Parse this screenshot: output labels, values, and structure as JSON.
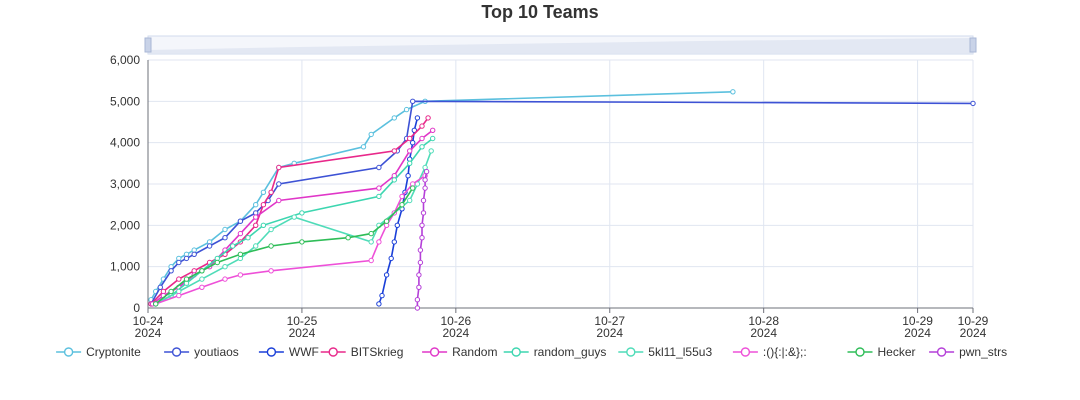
{
  "chart_data": {
    "type": "line",
    "title": "Top 10 Teams",
    "xlabel": "",
    "ylabel": "",
    "y_ticks": [
      "0",
      "1,000",
      "2,000",
      "3,000",
      "4,000",
      "5,000",
      "6,000"
    ],
    "ylim": [
      0,
      6000
    ],
    "x_ticks": [
      {
        "date": "10-24",
        "year": "2024",
        "x": 0
      },
      {
        "date": "10-25",
        "year": "2024",
        "x": 1
      },
      {
        "date": "10-26",
        "year": "2024",
        "x": 2
      },
      {
        "date": "10-27",
        "year": "2024",
        "x": 3
      },
      {
        "date": "10-28",
        "year": "2024",
        "x": 4
      },
      {
        "date": "10-29",
        "year": "2024",
        "x": 5
      },
      {
        "date": "10-29",
        "year": "2024",
        "x": 5.36
      }
    ],
    "xlim": [
      0,
      5.36
    ],
    "grid": true,
    "legend_position": "bottom",
    "series": [
      {
        "name": "Cryptonite",
        "color": "#5bc0de",
        "points": [
          [
            0.02,
            200
          ],
          [
            0.05,
            400
          ],
          [
            0.1,
            700
          ],
          [
            0.15,
            1000
          ],
          [
            0.2,
            1200
          ],
          [
            0.25,
            1300
          ],
          [
            0.3,
            1400
          ],
          [
            0.4,
            1600
          ],
          [
            0.5,
            1900
          ],
          [
            0.6,
            2100
          ],
          [
            0.7,
            2500
          ],
          [
            0.75,
            2800
          ],
          [
            0.85,
            3400
          ],
          [
            0.95,
            3500
          ],
          [
            1.4,
            3900
          ],
          [
            1.45,
            4200
          ],
          [
            1.6,
            4600
          ],
          [
            1.68,
            4800
          ],
          [
            1.8,
            5000
          ],
          [
            3.8,
            5230
          ]
        ]
      },
      {
        "name": "youtiaos",
        "color": "#3d52d5",
        "points": [
          [
            0.02,
            100
          ],
          [
            0.08,
            500
          ],
          [
            0.15,
            900
          ],
          [
            0.2,
            1100
          ],
          [
            0.25,
            1200
          ],
          [
            0.3,
            1300
          ],
          [
            0.4,
            1500
          ],
          [
            0.5,
            1700
          ],
          [
            0.6,
            2100
          ],
          [
            0.7,
            2300
          ],
          [
            0.78,
            2600
          ],
          [
            0.85,
            3000
          ],
          [
            1.5,
            3400
          ],
          [
            1.62,
            3800
          ],
          [
            1.68,
            4100
          ],
          [
            1.72,
            5000
          ],
          [
            5.36,
            4950
          ]
        ]
      },
      {
        "name": "WWF",
        "color": "#1a3fd8",
        "points": [
          [
            1.5,
            100
          ],
          [
            1.52,
            300
          ],
          [
            1.55,
            800
          ],
          [
            1.58,
            1200
          ],
          [
            1.6,
            1600
          ],
          [
            1.62,
            2000
          ],
          [
            1.65,
            2400
          ],
          [
            1.67,
            2800
          ],
          [
            1.69,
            3200
          ],
          [
            1.7,
            3600
          ],
          [
            1.72,
            4000
          ],
          [
            1.73,
            4300
          ],
          [
            1.75,
            4600
          ]
        ]
      },
      {
        "name": "BITSkrieg",
        "color": "#e8288a",
        "points": [
          [
            0.02,
            100
          ],
          [
            0.1,
            400
          ],
          [
            0.2,
            700
          ],
          [
            0.3,
            900
          ],
          [
            0.4,
            1100
          ],
          [
            0.5,
            1300
          ],
          [
            0.6,
            1600
          ],
          [
            0.7,
            2000
          ],
          [
            0.75,
            2500
          ],
          [
            0.8,
            2800
          ],
          [
            0.85,
            3400
          ],
          [
            1.6,
            3800
          ],
          [
            1.7,
            4100
          ],
          [
            1.78,
            4400
          ],
          [
            1.82,
            4600
          ]
        ]
      },
      {
        "name": "Random",
        "color": "#e036c8",
        "points": [
          [
            0.03,
            100
          ],
          [
            0.1,
            300
          ],
          [
            0.2,
            500
          ],
          [
            0.3,
            800
          ],
          [
            0.4,
            1000
          ],
          [
            0.5,
            1400
          ],
          [
            0.6,
            1800
          ],
          [
            0.7,
            2200
          ],
          [
            0.85,
            2600
          ],
          [
            1.5,
            2900
          ],
          [
            1.6,
            3200
          ],
          [
            1.7,
            3800
          ],
          [
            1.78,
            4100
          ],
          [
            1.85,
            4300
          ]
        ]
      },
      {
        "name": "random_guys",
        "color": "#3dd6b0",
        "points": [
          [
            0.05,
            100
          ],
          [
            0.15,
            300
          ],
          [
            0.25,
            600
          ],
          [
            0.35,
            900
          ],
          [
            0.45,
            1200
          ],
          [
            0.55,
            1500
          ],
          [
            0.65,
            1700
          ],
          [
            0.75,
            2000
          ],
          [
            1.0,
            2300
          ],
          [
            1.5,
            2700
          ],
          [
            1.6,
            3100
          ],
          [
            1.7,
            3500
          ],
          [
            1.78,
            3900
          ],
          [
            1.85,
            4100
          ]
        ]
      },
      {
        "name": "5kl11_l55u3",
        "color": "#4fdcb8",
        "points": [
          [
            0.05,
            100
          ],
          [
            0.2,
            400
          ],
          [
            0.35,
            700
          ],
          [
            0.5,
            1000
          ],
          [
            0.6,
            1200
          ],
          [
            0.7,
            1500
          ],
          [
            0.8,
            1900
          ],
          [
            0.95,
            2200
          ],
          [
            1.45,
            1600
          ],
          [
            1.5,
            2000
          ],
          [
            1.6,
            2300
          ],
          [
            1.7,
            2600
          ],
          [
            1.75,
            3000
          ],
          [
            1.8,
            3400
          ],
          [
            1.84,
            3800
          ]
        ]
      },
      {
        "name": ":(){:|:&};:",
        "color": "#ee50d8",
        "points": [
          [
            0.05,
            100
          ],
          [
            0.2,
            300
          ],
          [
            0.35,
            500
          ],
          [
            0.5,
            700
          ],
          [
            0.6,
            800
          ],
          [
            0.8,
            900
          ],
          [
            1.45,
            1150
          ],
          [
            1.5,
            1600
          ],
          [
            1.55,
            2000
          ],
          [
            1.6,
            2300
          ],
          [
            1.65,
            2700
          ],
          [
            1.72,
            3000
          ],
          [
            1.8,
            3200
          ]
        ]
      },
      {
        "name": "Hecker",
        "color": "#2fbd58",
        "points": [
          [
            0.05,
            100
          ],
          [
            0.15,
            400
          ],
          [
            0.25,
            700
          ],
          [
            0.35,
            900
          ],
          [
            0.45,
            1100
          ],
          [
            0.6,
            1300
          ],
          [
            0.8,
            1500
          ],
          [
            1.0,
            1600
          ],
          [
            1.3,
            1700
          ],
          [
            1.45,
            1800
          ],
          [
            1.55,
            2100
          ],
          [
            1.65,
            2500
          ],
          [
            1.72,
            2900
          ]
        ]
      },
      {
        "name": "pwn_strs",
        "color": "#b43fd8",
        "points": [
          [
            1.75,
            0
          ],
          [
            1.75,
            200
          ],
          [
            1.76,
            500
          ],
          [
            1.76,
            800
          ],
          [
            1.77,
            1100
          ],
          [
            1.77,
            1400
          ],
          [
            1.78,
            1700
          ],
          [
            1.78,
            2000
          ],
          [
            1.79,
            2300
          ],
          [
            1.79,
            2600
          ],
          [
            1.8,
            2900
          ],
          [
            1.8,
            3100
          ],
          [
            1.81,
            3300
          ]
        ]
      }
    ]
  }
}
